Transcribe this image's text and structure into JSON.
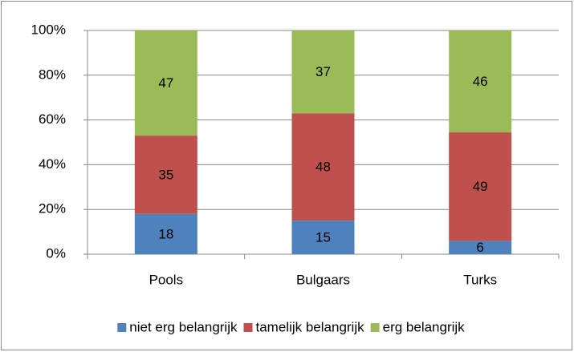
{
  "chart_data": {
    "type": "bar",
    "stack": "percent",
    "categories": [
      "Pools",
      "Bulgaars",
      "Turks"
    ],
    "series": [
      {
        "name": "niet erg belangrijk",
        "color": "#4f81bd",
        "values": [
          18,
          15,
          6
        ]
      },
      {
        "name": "tamelijk belangrijk",
        "color": "#c0504d",
        "values": [
          35,
          48,
          49
        ]
      },
      {
        "name": "erg belangrijk",
        "color": "#9bbb59",
        "values": [
          47,
          37,
          46
        ]
      }
    ],
    "ylim": [
      0,
      100
    ],
    "yticks": [
      {
        "value": 0,
        "label": "0%"
      },
      {
        "value": 20,
        "label": "20%"
      },
      {
        "value": 40,
        "label": "40%"
      },
      {
        "value": 60,
        "label": "60%"
      },
      {
        "value": 80,
        "label": "80%"
      },
      {
        "value": 100,
        "label": "100%"
      }
    ],
    "grid": true,
    "legend": "bottom"
  }
}
